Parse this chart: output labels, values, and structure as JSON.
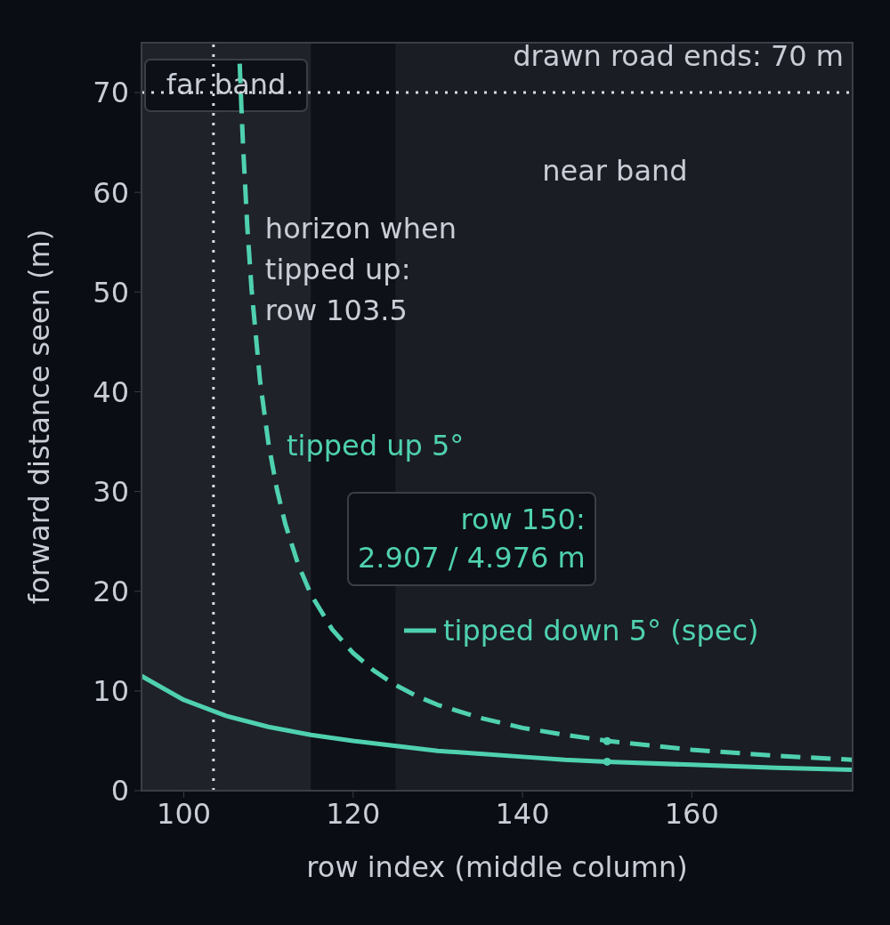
{
  "chart_data": {
    "type": "line",
    "xlabel": "row index (middle column)",
    "ylabel": "forward distance seen (m)",
    "xlim": [
      95,
      179
    ],
    "ylim": [
      0,
      75
    ],
    "xticks": [
      100,
      120,
      140,
      160
    ],
    "yticks": [
      0,
      10,
      20,
      30,
      40,
      50,
      60,
      70
    ],
    "grid": false,
    "series": [
      {
        "name": "tipped up 5°",
        "color": "#4fd1b0",
        "line_style": "dashed",
        "marker": "none",
        "x": [
          106.6,
          106.8,
          107,
          107.5,
          108,
          109,
          110,
          111,
          112,
          113.5,
          115,
          117.5,
          120,
          122.5,
          125,
          127.5,
          130,
          135,
          140,
          145,
          150,
          160,
          170,
          179
        ],
        "values": [
          72.9,
          68.5,
          64.6,
          56.5,
          50.3,
          41.1,
          34.8,
          30.2,
          26.7,
          22.7,
          19.7,
          16.2,
          13.8,
          12.0,
          10.6,
          9.5,
          8.6,
          7.3,
          6.3,
          5.6,
          5.0,
          4.1,
          3.5,
          3.1
        ]
      },
      {
        "name": "tipped down 5° (spec)",
        "color": "#4fd1b0",
        "line_style": "solid",
        "marker": "none",
        "x": [
          95,
          100,
          105,
          110,
          115,
          120,
          130,
          135,
          140,
          145,
          150,
          160,
          170,
          179
        ],
        "values": [
          11.5,
          9.1,
          7.5,
          6.4,
          5.6,
          5.0,
          4.0,
          3.7,
          3.4,
          3.1,
          2.9,
          2.6,
          2.3,
          2.1
        ]
      },
      {
        "type": "scatter",
        "color": "#4fd1b0",
        "marker": "circle",
        "x": [
          150,
          150
        ],
        "values": [
          4.976,
          2.907
        ]
      }
    ],
    "ref_lines": [
      {
        "axis": "x",
        "value": 103.5,
        "label": "horizon when\ntipped up:\nrow 103.5",
        "color": "#d8dbe2",
        "line_style": "dotted"
      },
      {
        "axis": "y",
        "value": 70,
        "label": "drawn road ends: 70 m",
        "color": "#d8dbe2",
        "line_style": "dotted"
      }
    ],
    "bands": [
      {
        "axis": "x",
        "from": 95,
        "to": 115,
        "label": "far band",
        "color": "#1f2229"
      },
      {
        "axis": "x",
        "from": 125,
        "to": 179,
        "label": "near band",
        "color": "#1a1d24"
      }
    ],
    "annotations": [
      "row 150:\n2.907 / 4.976 m"
    ]
  }
}
